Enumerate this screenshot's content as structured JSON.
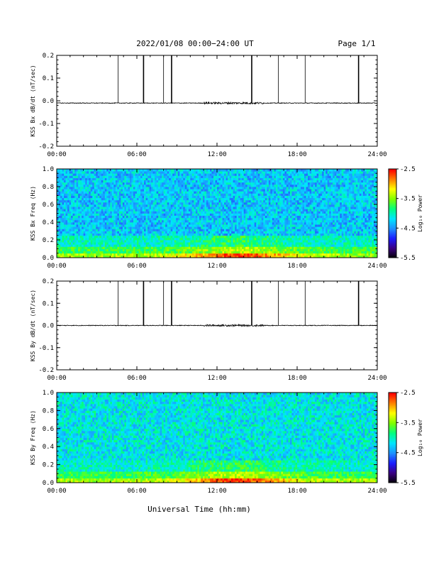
{
  "header": {
    "title": "2022/01/08  00:00−24:00 UT",
    "page_label": "Page 1/1"
  },
  "footer": {
    "xlabel": "Universal Time (hh:mm)"
  },
  "colorbar": {
    "label": "Log₁₀ Power",
    "ticks": [
      "-2.5",
      "-3.5",
      "-4.5",
      "-5.5"
    ],
    "colors": [
      "#000000",
      "#3b0080",
      "#1b1bff",
      "#1e90ff",
      "#00e5ff",
      "#00ff7f",
      "#7fff00",
      "#ffff00",
      "#ff8000",
      "#ff0000"
    ]
  },
  "chart_data": [
    {
      "type": "line",
      "ylabel": "KSS Bx dB/dt (nT/sec)",
      "ylim": [
        -0.2,
        0.2
      ],
      "yticks": [
        "0.2",
        "0.1",
        "0.0",
        "-0.1",
        "-0.2"
      ],
      "xticks": [
        "00:00",
        "06:00",
        "12:00",
        "18:00",
        "24:00"
      ],
      "xlim_hours": [
        0,
        24
      ],
      "baseline": -0.01,
      "spike_hours": [
        4.6,
        6.5,
        8.0,
        8.6,
        14.6,
        16.6,
        18.6,
        22.6
      ],
      "spike_top": 0.2,
      "color": "#000000"
    },
    {
      "type": "heatmap",
      "ylabel": "KSS Bx Freq (Hz)",
      "ylim": [
        0.0,
        1.0
      ],
      "yticks": [
        "1.0",
        "0.8",
        "0.6",
        "0.4",
        "0.2",
        "0.0"
      ],
      "xticks": [
        "00:00",
        "06:00",
        "12:00",
        "18:00",
        "24:00"
      ],
      "xlim_hours": [
        0,
        24
      ],
      "zlim": [
        -5.5,
        -2.5
      ]
    },
    {
      "type": "line",
      "ylabel": "KSS By dB/dt (nT/sec)",
      "ylim": [
        -0.2,
        0.2
      ],
      "yticks": [
        "0.2",
        "0.1",
        "0.0",
        "-0.1",
        "-0.2"
      ],
      "xticks": [
        "00:00",
        "06:00",
        "12:00",
        "18:00",
        "24:00"
      ],
      "xlim_hours": [
        0,
        24
      ],
      "baseline": 0.0,
      "spike_hours": [
        4.6,
        6.5,
        8.0,
        8.6,
        14.6,
        16.6,
        18.6,
        22.6
      ],
      "spike_top": 0.2,
      "color": "#000000"
    },
    {
      "type": "heatmap",
      "ylabel": "KSS By Freq (Hz)",
      "ylim": [
        0.0,
        1.0
      ],
      "yticks": [
        "1.0",
        "0.8",
        "0.6",
        "0.4",
        "0.2",
        "0.0"
      ],
      "xticks": [
        "00:00",
        "06:00",
        "12:00",
        "18:00",
        "24:00"
      ],
      "xlim_hours": [
        0,
        24
      ],
      "zlim": [
        -5.5,
        -2.5
      ]
    }
  ]
}
